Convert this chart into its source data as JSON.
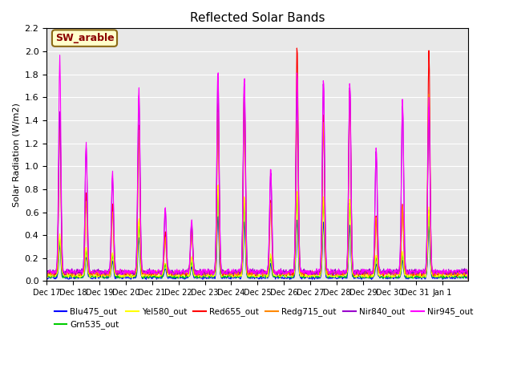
{
  "title": "Reflected Solar Bands",
  "ylabel": "Solar Radiation (W/m2)",
  "annotation": "SW_arable",
  "annotation_color": "#8B0000",
  "annotation_bg": "#FFFFCC",
  "annotation_border": "#8B6914",
  "ylim": [
    0,
    2.2
  ],
  "bg_color": "#E8E8E8",
  "series": [
    {
      "label": "Blu475_out",
      "color": "#0000FF"
    },
    {
      "label": "Grn535_out",
      "color": "#00CC00"
    },
    {
      "label": "Yel580_out",
      "color": "#FFFF00"
    },
    {
      "label": "Red655_out",
      "color": "#FF0000"
    },
    {
      "label": "Redg715_out",
      "color": "#FF8800"
    },
    {
      "label": "Nir840_out",
      "color": "#9900CC"
    },
    {
      "label": "Nir945_out",
      "color": "#FF00FF"
    }
  ],
  "xtick_labels": [
    "Dec 17",
    "Dec 18",
    "Dec 19",
    "Dec 20",
    "Dec 21",
    "Dec 22",
    "Dec 23",
    "Dec 24",
    "Dec 25",
    "Dec 26",
    "Dec 27",
    "Dec 28",
    "Dec 29",
    "Dec 30",
    "Dec 31",
    "Jan 1"
  ],
  "ytick_labels": [
    0.0,
    0.2,
    0.4,
    0.6,
    0.8,
    1.0,
    1.2,
    1.4,
    1.6,
    1.8,
    2.0,
    2.2
  ],
  "nir945_peaks": [
    1.87,
    1.12,
    0.87,
    1.6,
    0.58,
    0.46,
    1.77,
    1.72,
    0.92,
    1.78,
    1.7,
    1.67,
    1.1,
    1.5,
    1.5,
    0.0
  ],
  "red655_peaks": [
    1.4,
    0.7,
    0.6,
    1.3,
    0.35,
    0.4,
    1.5,
    1.6,
    0.65,
    2.0,
    1.4,
    1.6,
    0.5,
    0.6,
    1.95,
    0.0
  ],
  "redg715_peaks": [
    1.35,
    0.65,
    0.55,
    1.25,
    0.3,
    0.38,
    1.45,
    1.55,
    0.62,
    1.35,
    1.35,
    1.55,
    0.48,
    0.58,
    1.55,
    0.0
  ],
  "nir840_peaks": [
    1.4,
    1.08,
    0.83,
    1.55,
    0.55,
    0.43,
    1.72,
    1.68,
    0.88,
    1.6,
    1.65,
    1.63,
    1.05,
    1.45,
    1.45,
    0.0
  ],
  "yel580_peaks": [
    0.35,
    0.25,
    0.2,
    0.5,
    0.12,
    0.15,
    0.8,
    0.7,
    0.18,
    0.75,
    0.7,
    0.68,
    0.18,
    0.2,
    0.6,
    0.0
  ],
  "grn535_peaks": [
    0.32,
    0.22,
    0.18,
    0.45,
    0.1,
    0.13,
    0.75,
    0.65,
    0.16,
    0.72,
    0.67,
    0.65,
    0.16,
    0.18,
    0.58,
    0.0
  ],
  "blu475_peaks": [
    0.28,
    0.18,
    0.14,
    0.35,
    0.08,
    0.1,
    0.55,
    0.5,
    0.12,
    0.5,
    0.5,
    0.45,
    0.12,
    0.15,
    0.45,
    0.0
  ]
}
